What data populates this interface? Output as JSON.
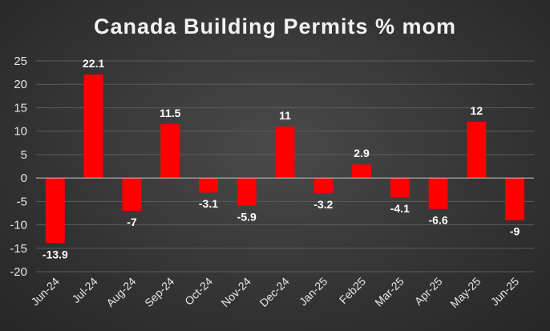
{
  "chart_data": {
    "type": "bar",
    "title": "Canada Building Permits % mom",
    "xlabel": "",
    "ylabel": "",
    "categories": [
      "Jun-24",
      "Jul-24",
      "Aug-24",
      "Sep-24",
      "Oct-24",
      "Nov-24",
      "Dec-24",
      "Jan-25",
      "Feb25",
      "Mar-25",
      "Apr-25",
      "May-25",
      "Jun-25"
    ],
    "values": [
      -13.9,
      22.1,
      -7,
      11.5,
      -3.1,
      -5.9,
      11,
      -3.2,
      2.9,
      -4.1,
      -6.6,
      12,
      -9
    ],
    "data_labels": [
      "-13.9",
      "22.1",
      "-7",
      "11.5",
      "-3.1",
      "-5.9",
      "11",
      "-3.2",
      "2.9",
      "-4.1",
      "-6.6",
      "12",
      "-9"
    ],
    "ylim": [
      -20,
      25
    ],
    "yticks": [
      "25",
      "20",
      "15",
      "10",
      "5",
      "0",
      "-5",
      "-10",
      "-15",
      "-20"
    ],
    "grid": true,
    "legend": "none",
    "colors": {
      "bar": "#ff0000",
      "grid": "#5c5c5c",
      "text": "#e6e6e6"
    }
  }
}
